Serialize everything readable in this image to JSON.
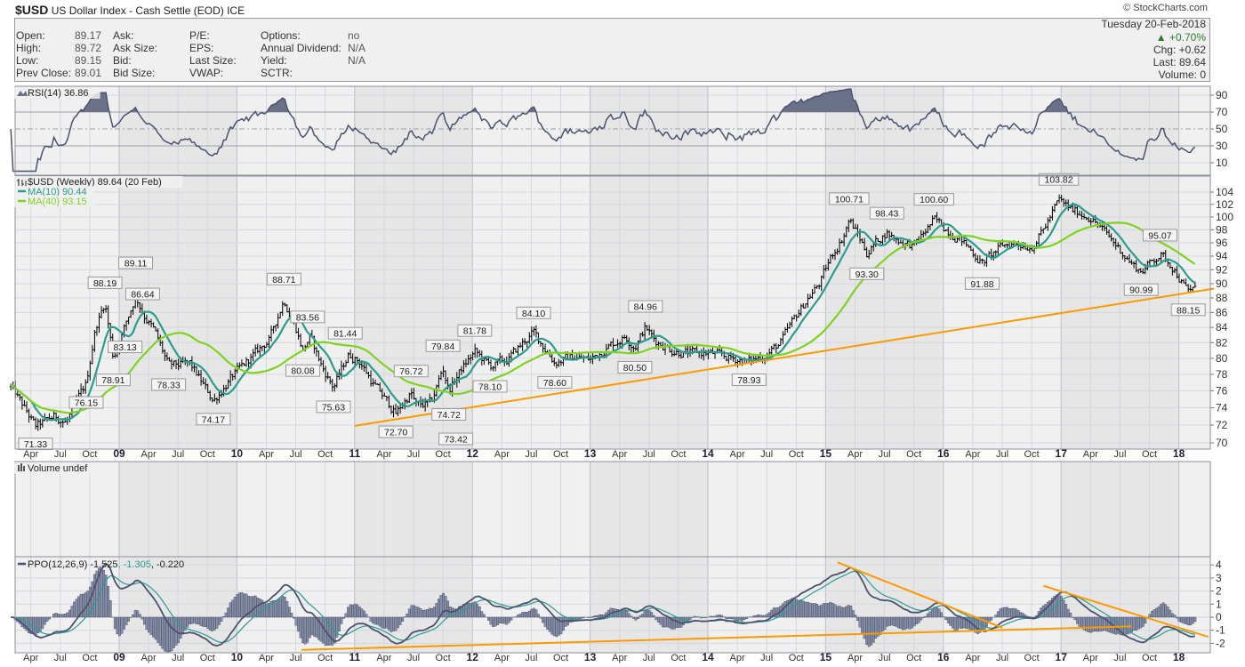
{
  "header": {
    "symbol": "$USD",
    "name": "US Dollar Index - Cash Settle (EOD) ICE",
    "copyright": "© StockCharts.com"
  },
  "quote": {
    "col1": [
      {
        "label": "Open:",
        "value": "89.17"
      },
      {
        "label": "High:",
        "value": "89.72"
      },
      {
        "label": "Low:",
        "value": "89.15"
      },
      {
        "label": "Prev Close:",
        "value": "89.01"
      }
    ],
    "col2": [
      {
        "label": "Ask:",
        "value": ""
      },
      {
        "label": "Ask Size:",
        "value": ""
      },
      {
        "label": "Bid:",
        "value": ""
      },
      {
        "label": "Bid Size:",
        "value": ""
      }
    ],
    "col3": [
      {
        "label": "P/E:",
        "value": ""
      },
      {
        "label": "EPS:",
        "value": ""
      },
      {
        "label": "Last Size:",
        "value": ""
      },
      {
        "label": "VWAP:",
        "value": ""
      }
    ],
    "col4": [
      {
        "label": "Options:",
        "value": "no"
      },
      {
        "label": "Annual Dividend:",
        "value": "N/A"
      },
      {
        "label": "Yield:",
        "value": "N/A"
      },
      {
        "label": "SCTR:",
        "value": ""
      }
    ],
    "date": "Tuesday  20-Feb-2018",
    "pct_change": "▲ +0.70%",
    "chg": "Chg:  +0.62",
    "last": "Last:  89.64",
    "volume": "Volume:    0"
  },
  "colors": {
    "price": "#000000",
    "ma10": "#2a9d8f",
    "ma40": "#7ed321",
    "trend": "#ff9900",
    "indicator": "#4a5270",
    "up": "#2e7d32"
  },
  "chart_data": {
    "type": "line",
    "title": "$USD (Weekly) 89.64 (20 Feb)",
    "panels": {
      "rsi": {
        "legend": "RSI(14) 36.86",
        "ticks": [
          10,
          30,
          50,
          70,
          90
        ]
      },
      "price": {
        "legend": "$USD (Weekly) 89.64 (20 Feb)",
        "ma10": "MA(10) 90.44",
        "ma40": "MA(40) 93.15",
        "ticks": [
          70,
          72,
          74,
          76,
          78,
          80,
          82,
          84,
          86,
          88,
          90,
          92,
          94,
          96,
          98,
          100,
          102,
          104
        ],
        "ylim": [
          70,
          104
        ],
        "scale": "log"
      },
      "volume": {
        "legend": "Volume undef"
      },
      "ppo": {
        "legend_name": "PPO(12,26,9)",
        "ppo": "-1.525",
        "signal": ", -1.305",
        "hist": ", -0.220",
        "ticks": [
          -2,
          -1,
          0,
          1,
          2,
          3,
          4
        ]
      }
    },
    "x_labels": [
      "Apr",
      "Jul",
      "Oct",
      "09",
      "Apr",
      "Jul",
      "Oct",
      "10",
      "Apr",
      "Jul",
      "Oct",
      "11",
      "Apr",
      "Jul",
      "Oct",
      "12",
      "Apr",
      "Jul",
      "Oct",
      "13",
      "Apr",
      "Jul",
      "Oct",
      "14",
      "Apr",
      "Jul",
      "Oct",
      "15",
      "Apr",
      "Jul",
      "Oct",
      "16",
      "Apr",
      "Jul",
      "Oct",
      "17",
      "Apr",
      "Jul",
      "Oct",
      "18"
    ],
    "x_start": 2008.25,
    "price_path": [
      [
        2008.08,
        76.5
      ],
      [
        2008.29,
        71.8
      ],
      [
        2008.45,
        73
      ],
      [
        2008.55,
        72.3
      ],
      [
        2008.72,
        76.8
      ],
      [
        2008.8,
        84
      ],
      [
        2008.88,
        87.4
      ],
      [
        2008.95,
        80
      ],
      [
        2009.02,
        83
      ],
      [
        2009.08,
        85.5
      ],
      [
        2009.14,
        88.3
      ],
      [
        2009.2,
        86
      ],
      [
        2009.3,
        83.5
      ],
      [
        2009.42,
        79
      ],
      [
        2009.6,
        79.3
      ],
      [
        2009.8,
        74.8
      ],
      [
        2009.95,
        77.5
      ],
      [
        2010.15,
        80.5
      ],
      [
        2010.28,
        82.5
      ],
      [
        2010.4,
        87.8
      ],
      [
        2010.5,
        84
      ],
      [
        2010.56,
        81
      ],
      [
        2010.62,
        82.8
      ],
      [
        2010.72,
        79
      ],
      [
        2010.82,
        76.4
      ],
      [
        2010.95,
        80.5
      ],
      [
        2011.05,
        79.5
      ],
      [
        2011.15,
        77
      ],
      [
        2011.35,
        73.3
      ],
      [
        2011.48,
        75.8
      ],
      [
        2011.52,
        74.2
      ],
      [
        2011.65,
        74.5
      ],
      [
        2011.75,
        78.8
      ],
      [
        2011.8,
        76
      ],
      [
        2011.9,
        78.5
      ],
      [
        2012.02,
        80.8
      ],
      [
        2012.15,
        79
      ],
      [
        2012.3,
        79.8
      ],
      [
        2012.45,
        82.3
      ],
      [
        2012.52,
        83.3
      ],
      [
        2012.7,
        79.5
      ],
      [
        2012.85,
        80.2
      ],
      [
        2013.0,
        79.8
      ],
      [
        2013.15,
        81.5
      ],
      [
        2013.3,
        82.8
      ],
      [
        2013.38,
        81.5
      ],
      [
        2013.47,
        84
      ],
      [
        2013.55,
        82.3
      ],
      [
        2013.7,
        81
      ],
      [
        2013.85,
        80.6
      ],
      [
        2014.0,
        80.7
      ],
      [
        2014.2,
        80
      ],
      [
        2014.35,
        79.6
      ],
      [
        2014.5,
        80.5
      ],
      [
        2014.62,
        82
      ],
      [
        2014.75,
        85.5
      ],
      [
        2014.85,
        88
      ],
      [
        2014.95,
        90
      ],
      [
        2015.05,
        94
      ],
      [
        2015.15,
        97
      ],
      [
        2015.2,
        99.6
      ],
      [
        2015.28,
        97
      ],
      [
        2015.35,
        94.5
      ],
      [
        2015.45,
        96.5
      ],
      [
        2015.52,
        97.6
      ],
      [
        2015.6,
        96.5
      ],
      [
        2015.75,
        95.5
      ],
      [
        2015.92,
        99.5
      ],
      [
        2016.0,
        98.5
      ],
      [
        2016.15,
        96.5
      ],
      [
        2016.33,
        93
      ],
      [
        2016.5,
        95.5
      ],
      [
        2016.6,
        96
      ],
      [
        2016.75,
        95.5
      ],
      [
        2016.85,
        98
      ],
      [
        2016.98,
        102.6
      ],
      [
        2017.1,
        101
      ],
      [
        2017.25,
        100
      ],
      [
        2017.4,
        97
      ],
      [
        2017.5,
        95
      ],
      [
        2017.62,
        92.5
      ],
      [
        2017.68,
        91.8
      ],
      [
        2017.84,
        94.3
      ],
      [
        2017.95,
        92.5
      ],
      [
        2018.05,
        89.5
      ],
      [
        2018.08,
        88.9
      ],
      [
        2018.14,
        89.64
      ]
    ],
    "annotations": [
      [
        2008.29,
        "71.33",
        "low"
      ],
      [
        2008.72,
        "76.15",
        "low"
      ],
      [
        2008.88,
        "88.19",
        "high"
      ],
      [
        2008.95,
        "78.91",
        "low"
      ],
      [
        2009.05,
        "83.13",
        "low"
      ],
      [
        2009.14,
        "89.11",
        "high"
      ],
      [
        2009.2,
        "86.64",
        "high"
      ],
      [
        2009.42,
        "78.33",
        "low"
      ],
      [
        2009.8,
        "74.17",
        "low"
      ],
      [
        2010.4,
        "88.71",
        "high"
      ],
      [
        2010.6,
        "83.56",
        "high"
      ],
      [
        2010.56,
        "80.08",
        "low"
      ],
      [
        2010.92,
        "81.44",
        "high"
      ],
      [
        2010.82,
        "75.63",
        "low"
      ],
      [
        2011.35,
        "72.70",
        "low"
      ],
      [
        2011.48,
        "76.72",
        "high"
      ],
      [
        2011.55,
        "73.42",
        "low"
      ],
      [
        2011.75,
        "79.84",
        "high"
      ],
      [
        2011.8,
        "74.72",
        "low"
      ],
      [
        2012.02,
        "81.78",
        "high"
      ],
      [
        2012.15,
        "78.10",
        "low"
      ],
      [
        2012.52,
        "84.10",
        "high"
      ],
      [
        2012.7,
        "78.60",
        "low"
      ],
      [
        2013.47,
        "84.96",
        "high"
      ],
      [
        2013.38,
        "80.50",
        "low"
      ],
      [
        2014.35,
        "78.93",
        "low"
      ],
      [
        2015.2,
        "100.71",
        "high"
      ],
      [
        2015.35,
        "93.30",
        "low"
      ],
      [
        2015.52,
        "98.43",
        "high"
      ],
      [
        2015.92,
        "100.60",
        "high"
      ],
      [
        2016.33,
        "91.88",
        "low"
      ],
      [
        2016.98,
        "103.82",
        "high"
      ],
      [
        2017.68,
        "90.99",
        "low"
      ],
      [
        2017.84,
        "95.07",
        "high"
      ],
      [
        2018.08,
        "88.15",
        "low"
      ]
    ],
    "trendlines": {
      "price": [
        [
          2011.0,
          71.9
        ],
        [
          2018.3,
          89.3
        ]
      ],
      "ppo": [
        [
          [
            2015.1,
            4.2
          ],
          [
            2016.5,
            -0.8
          ]
        ],
        [
          [
            2016.85,
            2.4
          ],
          [
            2018.25,
            -1.5
          ]
        ],
        [
          [
            2010.55,
            -2.5
          ],
          [
            2017.6,
            -0.7
          ]
        ]
      ]
    }
  }
}
